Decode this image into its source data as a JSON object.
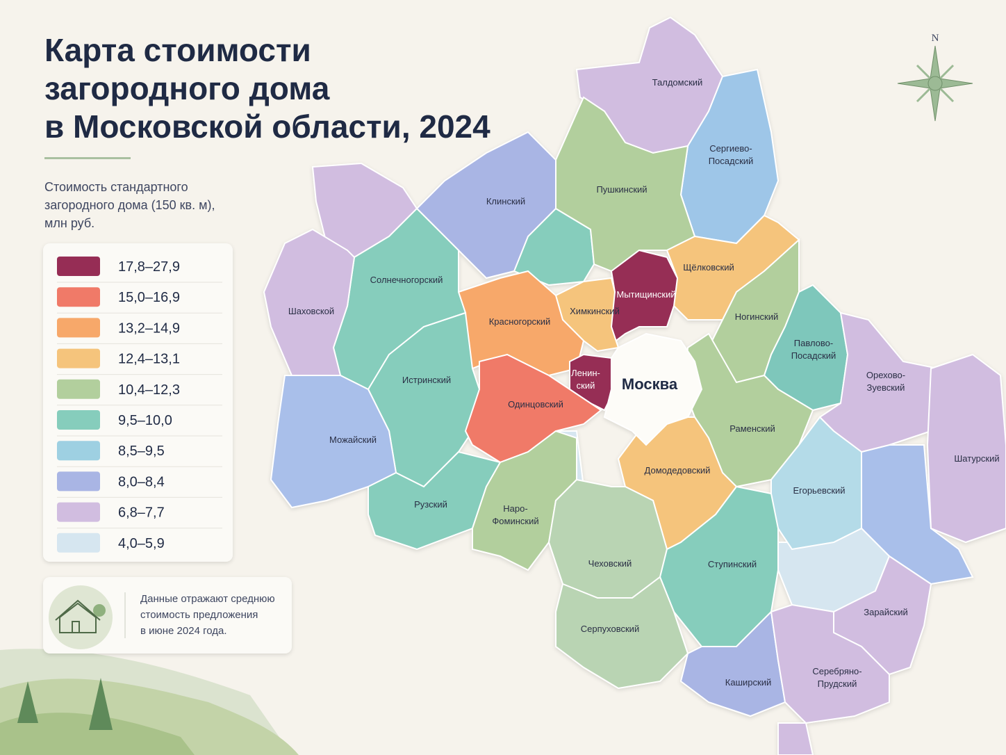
{
  "header": {
    "title": [
      "Карта стоимости",
      "загородного дома",
      "в Московской области, 2024"
    ],
    "subtitle": [
      "Стоимость стандартного",
      "загородного дома (150 кв. м),",
      "млн руб."
    ]
  },
  "legend": {
    "items": [
      {
        "label": "17,8–27,9",
        "color": "#962d55"
      },
      {
        "label": "15,0–16,9",
        "color": "#f07a68"
      },
      {
        "label": "13,2–14,9",
        "color": "#f7a86a"
      },
      {
        "label": "12,4–13,1",
        "color": "#f5c47c"
      },
      {
        "label": "10,4–12,3",
        "color": "#b2cf9d"
      },
      {
        "label": "9,5–10,0",
        "color": "#86cdbc"
      },
      {
        "label": "8,5–9,5",
        "color": "#9ed0e2"
      },
      {
        "label": "8,0–8,4",
        "color": "#a9b5e4"
      },
      {
        "label": "6,8–7,7",
        "color": "#d1bde0"
      },
      {
        "label": "4,0–5,9",
        "color": "#d6e6f0"
      }
    ]
  },
  "note": {
    "text": [
      "Данные отражают среднюю",
      "стоимость предложения",
      "в июне 2024 года."
    ]
  },
  "compass": {
    "north": "N"
  },
  "map": {
    "city": "Москва",
    "regions": [
      {
        "name": [
          "Талдомский"
        ],
        "color": "#d1bde0"
      },
      {
        "name": [
          "Сергиево-",
          "Посадский"
        ],
        "color": "#9ec6e8"
      },
      {
        "name": [
          "Клинский"
        ],
        "color": "#a9b5e4"
      },
      {
        "name": [
          "Пушкинский"
        ],
        "color": "#b2cf9d"
      },
      {
        "name": [
          "Щёлковский"
        ],
        "color": "#f5c47c"
      },
      {
        "name": [
          "Мытищинский"
        ],
        "color": "#962d55"
      },
      {
        "name": [
          "Химкинский"
        ],
        "color": "#f5c47c"
      },
      {
        "name": [
          "Красногорский"
        ],
        "color": "#f7a86a"
      },
      {
        "name": [
          "Солнечногорский"
        ],
        "color": "#86cdbc"
      },
      {
        "name": [
          "Шаховской"
        ],
        "color": "#d1bde0"
      },
      {
        "name": [
          "Истринский"
        ],
        "color": "#86cdbc"
      },
      {
        "name": [
          "Ленин-",
          "ский"
        ],
        "color": "#962d55"
      },
      {
        "name": [
          "Одинцовский"
        ],
        "color": "#f07a68"
      },
      {
        "name": [
          "Можайский"
        ],
        "color": "#a9bfea"
      },
      {
        "name": [
          "Рузский"
        ],
        "color": "#86cdbc"
      },
      {
        "name": [
          "Наро-",
          "Фоминский"
        ],
        "color": "#b2cf9d"
      },
      {
        "name": [
          "Ногинский"
        ],
        "color": "#b2cf9d"
      },
      {
        "name": [
          "Павлово-",
          "Посадский"
        ],
        "color": "#7ec7bb"
      },
      {
        "name": [
          "Орехово-",
          "Зуевский"
        ],
        "color": "#d1bde0"
      },
      {
        "name": [
          "Шатурский"
        ],
        "color": "#d1bde0"
      },
      {
        "name": [
          "Раменский"
        ],
        "color": "#b2cf9d"
      },
      {
        "name": [
          "Домодедовский"
        ],
        "color": "#f5c47c"
      },
      {
        "name": [
          "Егорьевский"
        ],
        "color": "#b4dbe8"
      },
      {
        "name": [
          "Чеховский"
        ],
        "color": "#b9d4b3"
      },
      {
        "name": [
          "Ступинский"
        ],
        "color": "#86cdbc"
      },
      {
        "name": [
          "Зарайский"
        ],
        "color": "#d1bde0"
      },
      {
        "name": [
          "Серпуховский"
        ],
        "color": "#b9d4b3"
      },
      {
        "name": [
          "Каширский"
        ],
        "color": "#a9b5e4"
      },
      {
        "name": [
          "Серебряно-",
          "Прудский"
        ],
        "color": "#d1bde0"
      }
    ]
  }
}
